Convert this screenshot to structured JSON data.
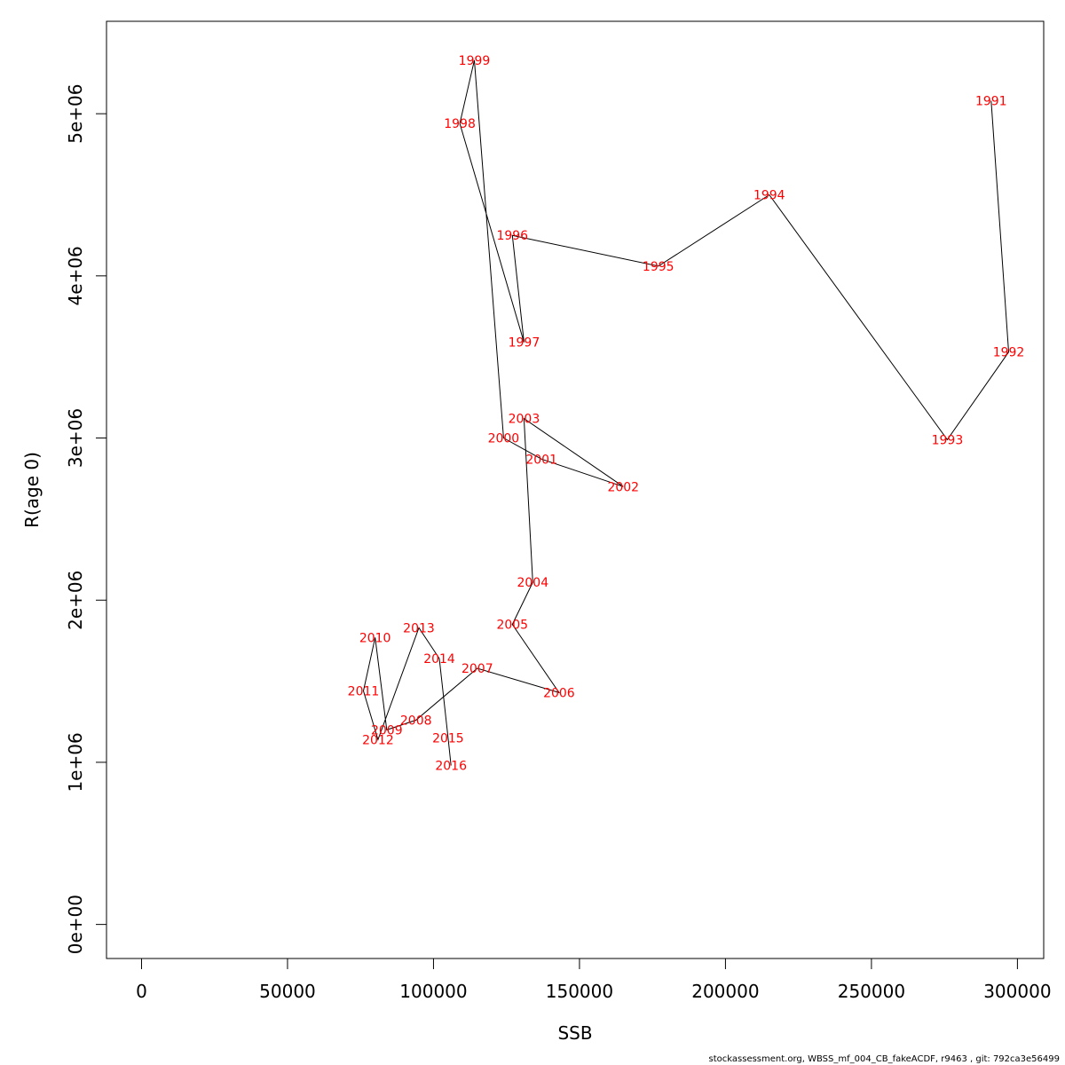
{
  "chart_data": {
    "type": "line",
    "xlabel": "SSB",
    "ylabel": "R(age 0)",
    "xlim": [
      -12000,
      309000
    ],
    "ylim": [
      -210000,
      5570000
    ],
    "x_ticks": [
      0,
      50000,
      100000,
      150000,
      200000,
      250000,
      300000
    ],
    "x_tick_labels": [
      "0",
      "50000",
      "100000",
      "150000",
      "200000",
      "250000",
      "300000"
    ],
    "y_ticks": [
      0,
      1000000,
      2000000,
      3000000,
      4000000,
      5000000
    ],
    "y_tick_labels": [
      "0e+00",
      "1e+06",
      "2e+06",
      "3e+06",
      "4e+06",
      "5e+06"
    ],
    "grid": false,
    "line_color": "#000000",
    "label_color": "#ff0000",
    "points": [
      {
        "year": "1991",
        "ssb": 291000,
        "r": 5080000
      },
      {
        "year": "1992",
        "ssb": 297000,
        "r": 3530000
      },
      {
        "year": "1993",
        "ssb": 276000,
        "r": 2990000
      },
      {
        "year": "1994",
        "ssb": 215000,
        "r": 4500000
      },
      {
        "year": "1995",
        "ssb": 177000,
        "r": 4060000
      },
      {
        "year": "1996",
        "ssb": 127000,
        "r": 4250000
      },
      {
        "year": "1997",
        "ssb": 131000,
        "r": 3590000
      },
      {
        "year": "1998",
        "ssb": 109000,
        "r": 4940000
      },
      {
        "year": "1999",
        "ssb": 114000,
        "r": 5330000
      },
      {
        "year": "2000",
        "ssb": 124000,
        "r": 3000000
      },
      {
        "year": "2001",
        "ssb": 137000,
        "r": 2870000
      },
      {
        "year": "2002",
        "ssb": 165000,
        "r": 2700000
      },
      {
        "year": "2003",
        "ssb": 131000,
        "r": 3120000
      },
      {
        "year": "2004",
        "ssb": 134000,
        "r": 2110000
      },
      {
        "year": "2005",
        "ssb": 127000,
        "r": 1850000
      },
      {
        "year": "2006",
        "ssb": 143000,
        "r": 1430000
      },
      {
        "year": "2007",
        "ssb": 115000,
        "r": 1580000
      },
      {
        "year": "2008",
        "ssb": 94000,
        "r": 1260000
      },
      {
        "year": "2009",
        "ssb": 84000,
        "r": 1200000
      },
      {
        "year": "2010",
        "ssb": 80000,
        "r": 1770000
      },
      {
        "year": "2011",
        "ssb": 76000,
        "r": 1440000
      },
      {
        "year": "2012",
        "ssb": 81000,
        "r": 1140000
      },
      {
        "year": "2013",
        "ssb": 95000,
        "r": 1830000
      },
      {
        "year": "2014",
        "ssb": 102000,
        "r": 1640000
      },
      {
        "year": "2015",
        "ssb": 105000,
        "r": 1150000
      },
      {
        "year": "2016",
        "ssb": 106000,
        "r": 980000
      }
    ]
  },
  "footer": "stockassessment.org, WBSS_mf_004_CB_fakeACDF, r9463 , git: 792ca3e56499"
}
